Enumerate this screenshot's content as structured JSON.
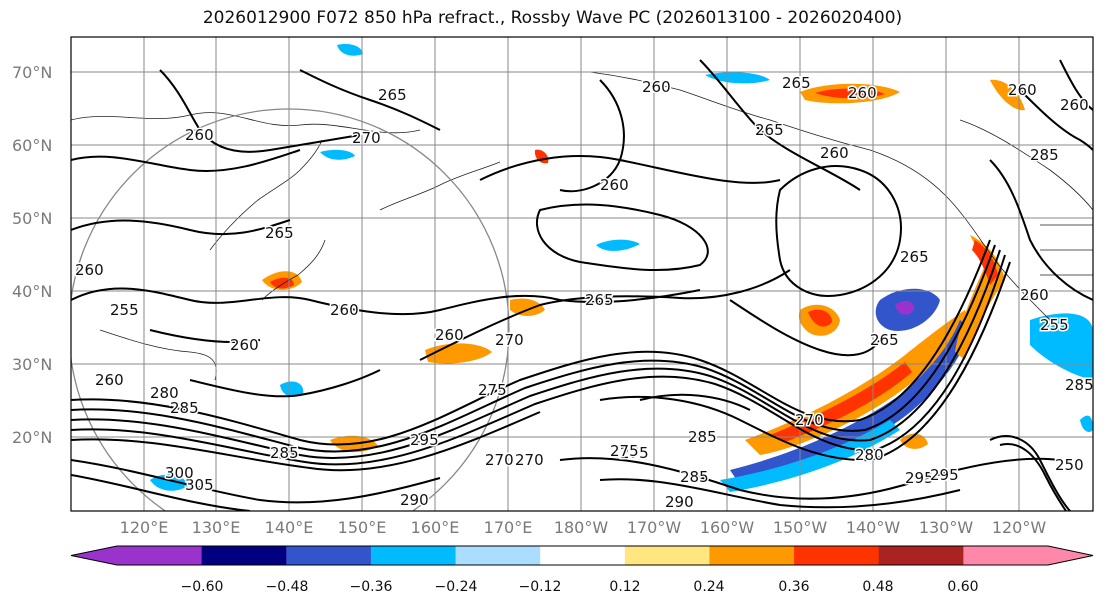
{
  "map": {
    "title": "2026012900 F072 850 hPa refract., Rossby Wave PC (2026013100 - 2026020400)",
    "lat_labels": [
      "70°N",
      "60°N",
      "50°N",
      "40°N",
      "30°N",
      "20°N"
    ],
    "lon_labels": [
      "120°E",
      "130°E",
      "140°E",
      "150°E",
      "160°E",
      "170°E",
      "180°W",
      "170°W",
      "160°W",
      "150°W",
      "140°W",
      "130°W",
      "120°W"
    ],
    "contour_labels": [
      "260",
      "265",
      "270",
      "260",
      "265",
      "265",
      "260",
      "260",
      "260",
      "265",
      "260",
      "255",
      "260",
      "260",
      "265",
      "260",
      "270",
      "275",
      "270",
      "275",
      "265",
      "260",
      "280",
      "285",
      "285",
      "290",
      "295",
      "280",
      "285",
      "270",
      "270",
      "275",
      "285",
      "290",
      "295",
      "285",
      "305",
      "300",
      "260",
      "265",
      "260",
      "255",
      "260",
      "285",
      "295",
      "250"
    ]
  },
  "colorbar": {
    "tick_labels": [
      "−0.60",
      "−0.48",
      "−0.36",
      "−0.24",
      "−0.12",
      "0.12",
      "0.24",
      "0.36",
      "0.48",
      "0.60"
    ],
    "colors": [
      "#9933cc",
      "#000080",
      "#3355cc",
      "#00bbff",
      "#aaddff",
      "#ffffff",
      "#ffe680",
      "#ff9900",
      "#ff3300",
      "#aa2222",
      "#ff88aa"
    ]
  }
}
